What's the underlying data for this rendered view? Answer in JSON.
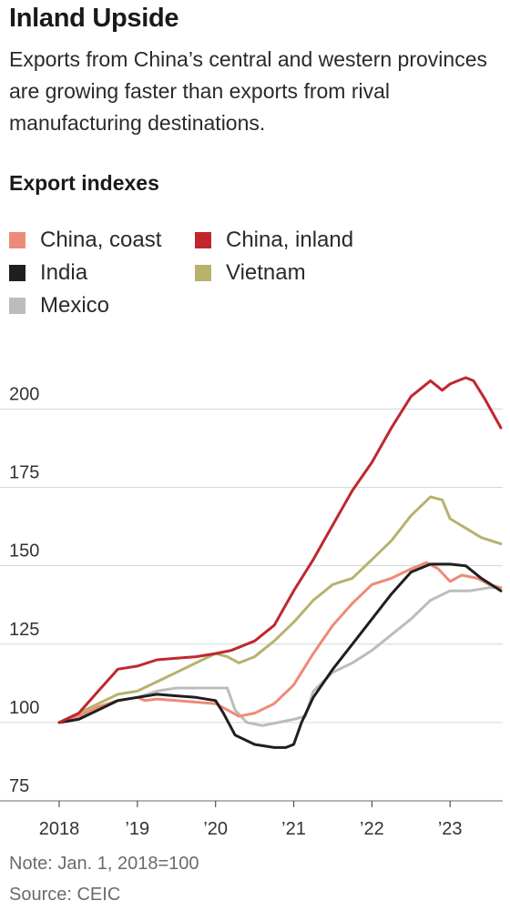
{
  "header": {
    "title": "Inland Upside",
    "subtitle": "Exports from China’s central and western provinces are growing faster than exports from rival manufacturing destinations.",
    "chart_label": "Export indexes"
  },
  "footer": {
    "note": "Note: Jan. 1, 2018=100",
    "source": "Source: CEIC"
  },
  "chart_data": {
    "type": "line",
    "title": "Export indexes",
    "xlabel": "",
    "ylabel": "",
    "xlim": [
      2018.0,
      2023.65
    ],
    "ylim": [
      75,
      210
    ],
    "grid": true,
    "y_ticks": [
      75,
      100,
      125,
      150,
      175,
      200
    ],
    "x_ticks": [
      {
        "value": 2018,
        "label": "2018"
      },
      {
        "value": 2019,
        "label": "’19"
      },
      {
        "value": 2020,
        "label": "’20"
      },
      {
        "value": 2021,
        "label": "’21"
      },
      {
        "value": 2022,
        "label": "’22"
      },
      {
        "value": 2023,
        "label": "’23"
      }
    ],
    "legend_placement": "top-left",
    "series": [
      {
        "name": "China, coast",
        "color": "#ef8a78",
        "x": [
          2018.0,
          2018.25,
          2018.5,
          2018.75,
          2019.0,
          2019.1,
          2019.25,
          2019.5,
          2019.75,
          2020.0,
          2020.15,
          2020.3,
          2020.5,
          2020.75,
          2021.0,
          2021.25,
          2021.5,
          2021.75,
          2022.0,
          2022.25,
          2022.5,
          2022.7,
          2022.85,
          2023.0,
          2023.15,
          2023.35,
          2023.5,
          2023.65
        ],
        "y": [
          100,
          102,
          105,
          107,
          108,
          107,
          107.5,
          107,
          106.5,
          106,
          104,
          102,
          103,
          106,
          112,
          122,
          131,
          138,
          144,
          146,
          149,
          151,
          149,
          145,
          147,
          146,
          144,
          143
        ]
      },
      {
        "name": "China, inland",
        "color": "#c0272d",
        "x": [
          2018.0,
          2018.25,
          2018.5,
          2018.75,
          2019.0,
          2019.25,
          2019.5,
          2019.75,
          2020.0,
          2020.2,
          2020.5,
          2020.75,
          2021.0,
          2021.25,
          2021.5,
          2021.75,
          2022.0,
          2022.25,
          2022.5,
          2022.75,
          2022.9,
          2023.0,
          2023.1,
          2023.2,
          2023.3,
          2023.45,
          2023.65
        ],
        "y": [
          100,
          103,
          110,
          117,
          118,
          120,
          120.5,
          121,
          122,
          123,
          126,
          131,
          142,
          152,
          163,
          174,
          183,
          194,
          204,
          209,
          206,
          208,
          209,
          210,
          209,
          203,
          194
        ]
      },
      {
        "name": "India",
        "color": "#1f1f1f",
        "x": [
          2018.0,
          2018.25,
          2018.5,
          2018.75,
          2019.0,
          2019.25,
          2019.5,
          2019.75,
          2020.0,
          2020.1,
          2020.25,
          2020.5,
          2020.75,
          2020.9,
          2021.0,
          2021.1,
          2021.25,
          2021.5,
          2021.75,
          2022.0,
          2022.25,
          2022.5,
          2022.75,
          2023.0,
          2023.2,
          2023.4,
          2023.65
        ],
        "y": [
          100,
          101,
          104,
          107,
          108,
          109,
          108.5,
          108,
          107,
          103,
          96,
          93,
          92,
          92,
          93,
          100,
          108,
          117,
          125,
          133,
          141,
          148,
          150.5,
          150.5,
          150,
          146,
          142
        ]
      },
      {
        "name": "Vietnam",
        "color": "#b7b26e",
        "x": [
          2018.0,
          2018.25,
          2018.5,
          2018.75,
          2019.0,
          2019.25,
          2019.5,
          2019.75,
          2020.0,
          2020.15,
          2020.3,
          2020.5,
          2020.75,
          2021.0,
          2021.25,
          2021.5,
          2021.75,
          2022.0,
          2022.25,
          2022.5,
          2022.75,
          2022.9,
          2023.0,
          2023.2,
          2023.4,
          2023.65
        ],
        "y": [
          100,
          103,
          106,
          109,
          110,
          113,
          116,
          119,
          122,
          121,
          119,
          121,
          126,
          132,
          139,
          144,
          146,
          152,
          158,
          166,
          172,
          171,
          165,
          162,
          159,
          157
        ]
      },
      {
        "name": "Mexico",
        "color": "#bcbcbc",
        "x": [
          2018.0,
          2018.25,
          2018.5,
          2018.75,
          2019.0,
          2019.25,
          2019.5,
          2019.75,
          2020.0,
          2020.15,
          2020.25,
          2020.4,
          2020.6,
          2020.8,
          2021.0,
          2021.15,
          2021.25,
          2021.5,
          2021.75,
          2022.0,
          2022.25,
          2022.5,
          2022.75,
          2023.0,
          2023.25,
          2023.5,
          2023.65
        ],
        "y": [
          100,
          102,
          105,
          107,
          108,
          110,
          111,
          111,
          111,
          111,
          104,
          100,
          99,
          100,
          101,
          102,
          110,
          116,
          119,
          123,
          128,
          133,
          139,
          142,
          142,
          143,
          143
        ]
      }
    ]
  }
}
